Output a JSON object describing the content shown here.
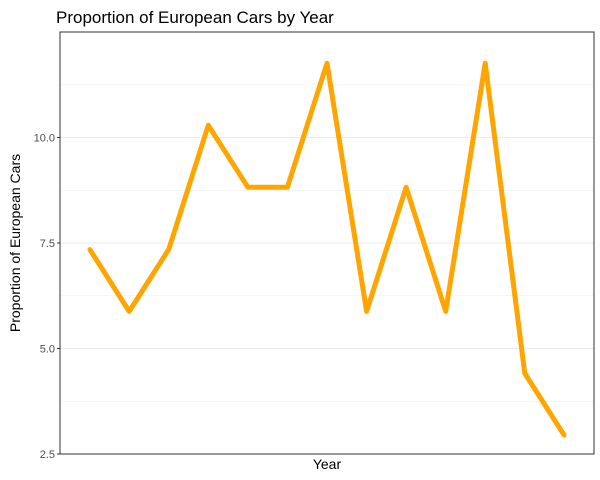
{
  "chart_data": {
    "type": "line",
    "title": "Proportion of European Cars by Year",
    "xlabel": "Year",
    "ylabel": "Proportion of European Cars",
    "x": [
      1,
      2,
      3,
      4,
      5,
      6,
      7,
      8,
      9,
      10,
      11,
      12,
      13
    ],
    "series": [
      {
        "values": [
          7.35,
          5.88,
          7.35,
          10.29,
          8.82,
          8.82,
          11.76,
          5.88,
          8.82,
          5.88,
          11.76,
          4.41,
          2.94
        ]
      }
    ],
    "xlim": [
      0.25,
      13.75
    ],
    "ylim": [
      2.5,
      12.5
    ],
    "y_ticks": [
      "2.5",
      "5.0",
      "7.5",
      "10.0"
    ],
    "grid": true,
    "line_color": "#FFA500",
    "legend": "none"
  }
}
